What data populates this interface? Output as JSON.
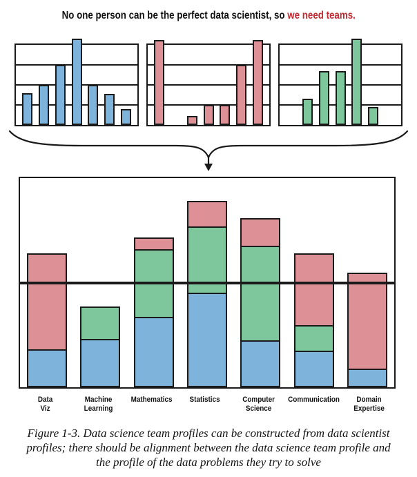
{
  "title": {
    "text_black": "No one person can be the perfect data scientist, so ",
    "text_red": "we need teams.",
    "red_color": "#C02A30"
  },
  "connector": {
    "icon": "curly-brace-with-down-arrow",
    "color": "#1a1a1a"
  },
  "colors": {
    "blue": "#7EB3DC",
    "green": "#7EC69C",
    "red": "#DD9095",
    "ink": "#1a1a1a"
  },
  "chart_data": [
    {
      "id": "profile-chart-blue",
      "type": "bar",
      "color": "#7EB3DC",
      "ylim": [
        0,
        4
      ],
      "gridlines": [
        1,
        2,
        3
      ],
      "grid": true,
      "legend": "none",
      "categories": [
        "1",
        "2",
        "3",
        "4",
        "5",
        "6",
        "7"
      ],
      "values": [
        1.6,
        2.0,
        3.0,
        4.3,
        2.0,
        1.55,
        0.8
      ],
      "title": "",
      "xlabel": "",
      "ylabel": ""
    },
    {
      "id": "profile-chart-red",
      "type": "bar",
      "color": "#DD9095",
      "ylim": [
        0,
        4
      ],
      "gridlines": [
        1,
        2,
        3
      ],
      "grid": true,
      "legend": "none",
      "categories": [
        "1",
        "2",
        "3",
        "4",
        "5",
        "6",
        "7"
      ],
      "values": [
        4.25,
        0,
        0.45,
        1.0,
        1.0,
        3.0,
        4.25
      ],
      "title": "",
      "xlabel": "",
      "ylabel": ""
    },
    {
      "id": "profile-chart-green",
      "type": "bar",
      "color": "#7EC69C",
      "ylim": [
        0,
        4
      ],
      "gridlines": [
        1,
        2,
        3
      ],
      "grid": true,
      "legend": "none",
      "categories": [
        "1",
        "2",
        "3",
        "4",
        "5",
        "6",
        "7"
      ],
      "values": [
        0,
        1.3,
        2.7,
        2.7,
        4.3,
        0.9,
        0
      ],
      "title": "",
      "xlabel": "",
      "ylabel": ""
    },
    {
      "id": "team-stacked-chart",
      "type": "bar",
      "stacked": true,
      "ylim": [
        0,
        4
      ],
      "baseline": 2.0,
      "grid": false,
      "legend": "none",
      "categories": [
        "Data Viz",
        "Machine Learning",
        "Mathematics",
        "Statistics",
        "Computer Science",
        "Communication",
        "Domain Expertise"
      ],
      "labels_display": [
        "Data\nViz",
        "Machine\nLearning",
        "Mathematics",
        "Statistics",
        "Computer\nScience",
        "Communication",
        "Domain\nExpertise"
      ],
      "series": [
        {
          "name": "blue-profile",
          "color": "#7EB3DC",
          "values": [
            0.68,
            0.87,
            1.3,
            1.76,
            0.85,
            0.65,
            0.3
          ]
        },
        {
          "name": "green-profile",
          "color": "#7EC69C",
          "values": [
            0,
            0.6,
            1.26,
            1.24,
            1.78,
            0.46,
            0
          ]
        },
        {
          "name": "red-profile",
          "color": "#DD9095",
          "values": [
            1.8,
            0,
            0.2,
            0.46,
            0.5,
            1.34,
            1.81
          ]
        }
      ],
      "title": "",
      "xlabel": "",
      "ylabel": ""
    }
  ],
  "caption": {
    "text": "Figure 1-3. Data science team profiles can be constructed from data scientist\nprofiles; there should be alignment between the data science team profile and\nthe profile of the data problems they try to solve"
  }
}
